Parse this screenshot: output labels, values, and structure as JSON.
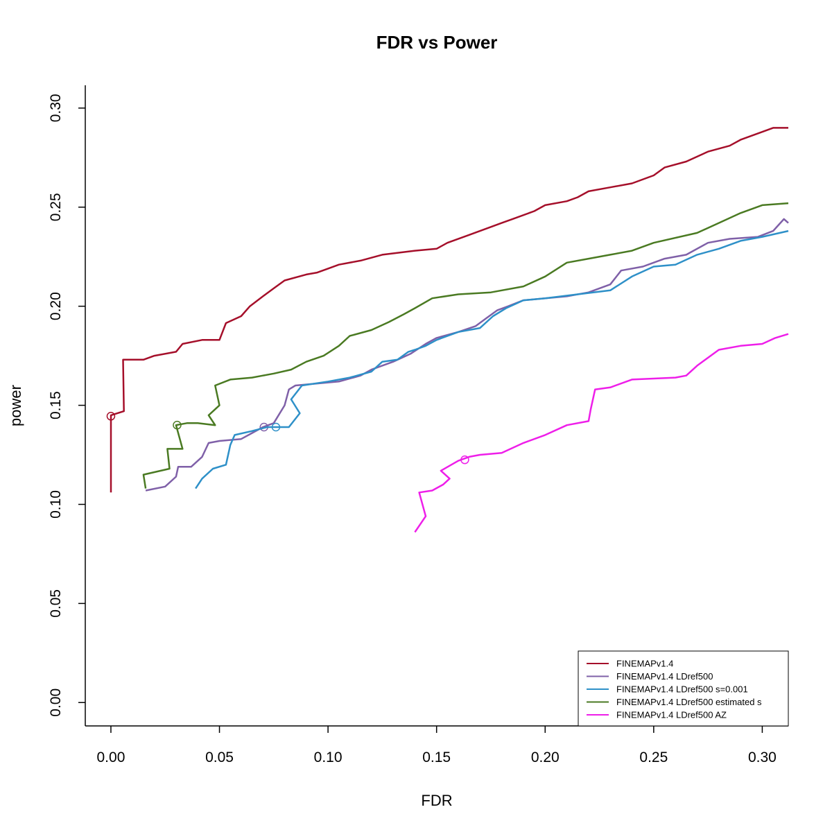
{
  "chart_data": {
    "type": "line",
    "title": "FDR vs Power",
    "xlabel": "FDR",
    "ylabel": "power",
    "xlim": [
      -0.0118,
      0.312
    ],
    "ylim": [
      -0.0118,
      0.3115
    ],
    "xticks": [
      "0.00",
      "0.05",
      "0.10",
      "0.15",
      "0.20",
      "0.25",
      "0.30"
    ],
    "yticks": [
      "0.00",
      "0.05",
      "0.10",
      "0.15",
      "0.20",
      "0.25",
      "0.30"
    ],
    "grid": false,
    "legend_position": "bottom-right",
    "series": [
      {
        "name": "FINEMAPv1.4",
        "color": "#a50f2a",
        "marker": [
          0.0,
          0.1445
        ],
        "points": [
          [
            0.0,
            0.106
          ],
          [
            0.0,
            0.1445
          ],
          [
            0.0,
            0.145
          ],
          [
            0.006,
            0.147
          ],
          [
            0.0056,
            0.173
          ],
          [
            0.015,
            0.173
          ],
          [
            0.02,
            0.175
          ],
          [
            0.03,
            0.177
          ],
          [
            0.033,
            0.181
          ],
          [
            0.042,
            0.183
          ],
          [
            0.05,
            0.183
          ],
          [
            0.053,
            0.1915
          ],
          [
            0.06,
            0.195
          ],
          [
            0.064,
            0.2
          ],
          [
            0.07,
            0.205
          ],
          [
            0.075,
            0.209
          ],
          [
            0.08,
            0.213
          ],
          [
            0.09,
            0.216
          ],
          [
            0.095,
            0.217
          ],
          [
            0.1,
            0.219
          ],
          [
            0.105,
            0.221
          ],
          [
            0.115,
            0.223
          ],
          [
            0.125,
            0.226
          ],
          [
            0.14,
            0.228
          ],
          [
            0.15,
            0.229
          ],
          [
            0.155,
            0.232
          ],
          [
            0.165,
            0.236
          ],
          [
            0.175,
            0.24
          ],
          [
            0.18,
            0.242
          ],
          [
            0.185,
            0.244
          ],
          [
            0.195,
            0.248
          ],
          [
            0.2,
            0.251
          ],
          [
            0.21,
            0.253
          ],
          [
            0.215,
            0.255
          ],
          [
            0.22,
            0.258
          ],
          [
            0.23,
            0.26
          ],
          [
            0.24,
            0.262
          ],
          [
            0.25,
            0.266
          ],
          [
            0.255,
            0.27
          ],
          [
            0.265,
            0.273
          ],
          [
            0.275,
            0.278
          ],
          [
            0.285,
            0.281
          ],
          [
            0.29,
            0.284
          ],
          [
            0.3,
            0.288
          ],
          [
            0.305,
            0.29
          ],
          [
            0.312,
            0.29
          ]
        ]
      },
      {
        "name": "FINEMAPv1.4 LDref500",
        "color": "#7f60a8",
        "marker": [
          0.0705,
          0.139
        ],
        "points": [
          [
            0.016,
            0.107
          ],
          [
            0.025,
            0.109
          ],
          [
            0.03,
            0.114
          ],
          [
            0.031,
            0.119
          ],
          [
            0.037,
            0.119
          ],
          [
            0.042,
            0.124
          ],
          [
            0.045,
            0.131
          ],
          [
            0.05,
            0.132
          ],
          [
            0.06,
            0.133
          ],
          [
            0.065,
            0.136
          ],
          [
            0.07,
            0.139
          ],
          [
            0.075,
            0.141
          ],
          [
            0.08,
            0.15
          ],
          [
            0.082,
            0.158
          ],
          [
            0.085,
            0.16
          ],
          [
            0.095,
            0.161
          ],
          [
            0.105,
            0.162
          ],
          [
            0.115,
            0.165
          ],
          [
            0.12,
            0.168
          ],
          [
            0.13,
            0.172
          ],
          [
            0.138,
            0.176
          ],
          [
            0.145,
            0.181
          ],
          [
            0.15,
            0.184
          ],
          [
            0.16,
            0.187
          ],
          [
            0.168,
            0.19
          ],
          [
            0.173,
            0.194
          ],
          [
            0.178,
            0.198
          ],
          [
            0.183,
            0.2
          ],
          [
            0.19,
            0.203
          ],
          [
            0.2,
            0.204
          ],
          [
            0.21,
            0.205
          ],
          [
            0.22,
            0.207
          ],
          [
            0.23,
            0.211
          ],
          [
            0.235,
            0.218
          ],
          [
            0.245,
            0.22
          ],
          [
            0.255,
            0.224
          ],
          [
            0.265,
            0.226
          ],
          [
            0.275,
            0.232
          ],
          [
            0.285,
            0.234
          ],
          [
            0.298,
            0.235
          ],
          [
            0.305,
            0.238
          ],
          [
            0.31,
            0.244
          ],
          [
            0.312,
            0.242
          ]
        ]
      },
      {
        "name": "FINEMAPv1.4 LDref500 s=0.001",
        "color": "#2e90c8",
        "marker": [
          0.076,
          0.139
        ],
        "points": [
          [
            0.039,
            0.108
          ],
          [
            0.042,
            0.113
          ],
          [
            0.047,
            0.118
          ],
          [
            0.053,
            0.12
          ],
          [
            0.055,
            0.13
          ],
          [
            0.057,
            0.135
          ],
          [
            0.065,
            0.137
          ],
          [
            0.072,
            0.139
          ],
          [
            0.082,
            0.139
          ],
          [
            0.087,
            0.146
          ],
          [
            0.083,
            0.153
          ],
          [
            0.088,
            0.16
          ],
          [
            0.1,
            0.162
          ],
          [
            0.11,
            0.164
          ],
          [
            0.12,
            0.167
          ],
          [
            0.125,
            0.172
          ],
          [
            0.132,
            0.173
          ],
          [
            0.137,
            0.177
          ],
          [
            0.14,
            0.178
          ],
          [
            0.145,
            0.18
          ],
          [
            0.15,
            0.183
          ],
          [
            0.16,
            0.187
          ],
          [
            0.17,
            0.189
          ],
          [
            0.176,
            0.195
          ],
          [
            0.182,
            0.199
          ],
          [
            0.19,
            0.203
          ],
          [
            0.2,
            0.204
          ],
          [
            0.215,
            0.206
          ],
          [
            0.23,
            0.208
          ],
          [
            0.24,
            0.215
          ],
          [
            0.25,
            0.22
          ],
          [
            0.26,
            0.221
          ],
          [
            0.27,
            0.226
          ],
          [
            0.28,
            0.229
          ],
          [
            0.29,
            0.233
          ],
          [
            0.3,
            0.235
          ],
          [
            0.312,
            0.238
          ]
        ]
      },
      {
        "name": "FINEMAPv1.4 LDref500 estimated s",
        "color": "#4a7a22",
        "marker": [
          0.0305,
          0.14
        ],
        "points": [
          [
            0.016,
            0.108
          ],
          [
            0.015,
            0.115
          ],
          [
            0.027,
            0.118
          ],
          [
            0.026,
            0.128
          ],
          [
            0.033,
            0.128
          ],
          [
            0.03,
            0.14
          ],
          [
            0.035,
            0.141
          ],
          [
            0.04,
            0.141
          ],
          [
            0.048,
            0.14
          ],
          [
            0.045,
            0.145
          ],
          [
            0.05,
            0.15
          ],
          [
            0.048,
            0.16
          ],
          [
            0.055,
            0.163
          ],
          [
            0.065,
            0.164
          ],
          [
            0.07,
            0.165
          ],
          [
            0.075,
            0.166
          ],
          [
            0.083,
            0.168
          ],
          [
            0.09,
            0.172
          ],
          [
            0.098,
            0.175
          ],
          [
            0.105,
            0.18
          ],
          [
            0.11,
            0.185
          ],
          [
            0.12,
            0.188
          ],
          [
            0.128,
            0.192
          ],
          [
            0.135,
            0.196
          ],
          [
            0.14,
            0.199
          ],
          [
            0.148,
            0.204
          ],
          [
            0.16,
            0.206
          ],
          [
            0.175,
            0.207
          ],
          [
            0.19,
            0.21
          ],
          [
            0.2,
            0.215
          ],
          [
            0.21,
            0.222
          ],
          [
            0.22,
            0.224
          ],
          [
            0.23,
            0.226
          ],
          [
            0.24,
            0.228
          ],
          [
            0.25,
            0.232
          ],
          [
            0.27,
            0.237
          ],
          [
            0.28,
            0.242
          ],
          [
            0.29,
            0.247
          ],
          [
            0.3,
            0.251
          ],
          [
            0.312,
            0.252
          ]
        ]
      },
      {
        "name": "FINEMAPv1.4 LDref500 AZ",
        "color": "#ee1ee9",
        "marker": [
          0.163,
          0.1225
        ],
        "points": [
          [
            0.14,
            0.086
          ],
          [
            0.145,
            0.094
          ],
          [
            0.142,
            0.106
          ],
          [
            0.148,
            0.107
          ],
          [
            0.153,
            0.11
          ],
          [
            0.156,
            0.113
          ],
          [
            0.152,
            0.117
          ],
          [
            0.16,
            0.122
          ],
          [
            0.165,
            0.124
          ],
          [
            0.17,
            0.125
          ],
          [
            0.18,
            0.126
          ],
          [
            0.19,
            0.131
          ],
          [
            0.2,
            0.135
          ],
          [
            0.21,
            0.14
          ],
          [
            0.22,
            0.142
          ],
          [
            0.221,
            0.148
          ],
          [
            0.223,
            0.158
          ],
          [
            0.23,
            0.159
          ],
          [
            0.24,
            0.163
          ],
          [
            0.26,
            0.164
          ],
          [
            0.265,
            0.165
          ],
          [
            0.27,
            0.17
          ],
          [
            0.28,
            0.178
          ],
          [
            0.29,
            0.18
          ],
          [
            0.3,
            0.181
          ],
          [
            0.306,
            0.184
          ],
          [
            0.312,
            0.186
          ]
        ]
      }
    ]
  }
}
